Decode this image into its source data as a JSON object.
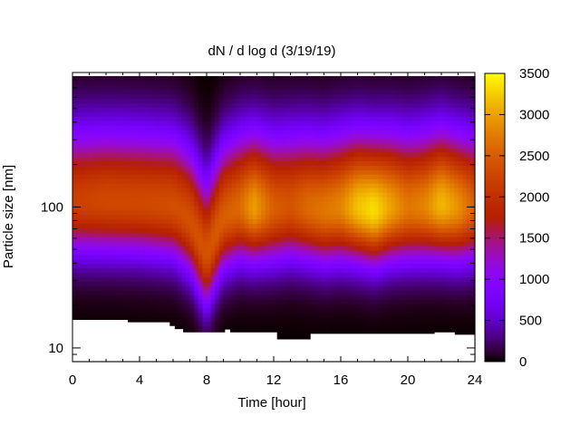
{
  "chart_data": {
    "type": "heatmap",
    "title": "dN / d log d (3/19/19)",
    "xlabel": "Time [hour]",
    "ylabel": "Particle size [nm]",
    "xlim": [
      0,
      24
    ],
    "ylim": [
      8,
      900
    ],
    "y_scale": "log",
    "x_ticks": [
      0,
      4,
      8,
      12,
      16,
      20,
      24
    ],
    "x_tick_labels": [
      "0",
      "4",
      "8",
      "12",
      "16",
      "20",
      "24"
    ],
    "y_ticks": [
      10,
      100
    ],
    "y_tick_labels": [
      "10",
      "100"
    ],
    "colorbar": {
      "range": [
        0,
        3500
      ],
      "ticks": [
        0,
        500,
        1000,
        1500,
        2000,
        2500,
        3000,
        3500
      ],
      "tick_labels": [
        "0",
        "500",
        "1000",
        "1500",
        "2000",
        "2500",
        "3000",
        "3500"
      ],
      "colormap": "gnuplot",
      "colors": [
        "#000000",
        "#7f00ff",
        "#ff2000",
        "#ff8000",
        "#ffff00"
      ]
    },
    "grid": false,
    "size_range_nm": [
      12,
      850
    ],
    "profile_peak_nm": {
      "x": [
        0,
        2,
        4,
        6,
        7,
        7.5,
        8,
        8.5,
        9,
        10,
        11,
        12,
        13,
        14,
        15,
        16,
        17,
        18,
        19,
        20,
        21,
        22,
        23,
        24
      ],
      "y": [
        110,
        110,
        108,
        102,
        80,
        60,
        45,
        62,
        85,
        100,
        100,
        98,
        102,
        100,
        95,
        100,
        100,
        95,
        100,
        100,
        102,
        105,
        100,
        100
      ]
    },
    "peak_concentration": {
      "x": [
        0,
        2,
        4,
        6,
        8,
        10,
        10.8,
        12,
        13,
        14,
        15,
        16,
        17,
        18,
        19,
        20,
        21,
        22,
        23,
        24
      ],
      "y": [
        2200,
        2300,
        2300,
        2350,
        2400,
        2600,
        3000,
        2500,
        2400,
        2600,
        2700,
        2800,
        3200,
        3350,
        3000,
        2700,
        2800,
        3150,
        2900,
        2500
      ]
    },
    "lower_cutoff_nm": {
      "x": [
        0,
        3.3,
        3.3,
        5.8,
        5.8,
        6.1,
        6.1,
        6.6,
        6.6,
        9.1,
        9.1,
        9.4,
        9.4,
        12.2,
        12.2,
        14.2,
        14.2,
        21.6,
        21.6,
        22.8,
        22.8,
        24
      ],
      "y": [
        15.8,
        15.8,
        15.2,
        15.2,
        14.3,
        14.3,
        13.6,
        13.6,
        12.9,
        12.9,
        13.5,
        13.5,
        12.9,
        12.9,
        11.5,
        11.5,
        12.6,
        12.6,
        12.9,
        12.9,
        12.4,
        12.4
      ]
    }
  }
}
